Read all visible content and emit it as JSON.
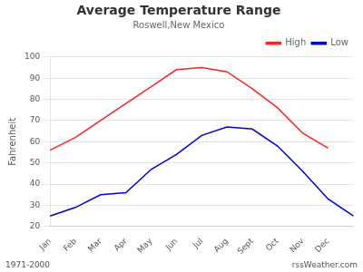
{
  "chart_data": {
    "type": "line",
    "title": "Average Temperature Range",
    "subtitle": "Roswell,New Mexico",
    "y_label": "Fahrenheit",
    "annotations": [
      "1971-2000",
      "rssWeather.com"
    ],
    "categories": [
      "Jan",
      "Feb",
      "Mar",
      "Apr",
      "May",
      "Jun",
      "Jul",
      "Aug",
      "Sept",
      "Oct",
      "Nov",
      "Dec",
      null
    ],
    "series": [
      {
        "name": "High",
        "color": "#ff2222",
        "values": [
          56,
          62,
          70,
          78,
          86,
          94,
          95,
          93,
          85,
          76,
          64,
          57,
          null
        ]
      },
      {
        "name": "Low",
        "color": "#0000cc",
        "values": [
          25,
          29,
          35,
          36,
          47,
          54,
          63,
          67,
          66,
          58,
          46,
          33,
          25
        ]
      }
    ],
    "ylim": [
      20,
      100
    ],
    "yticks": [
      20,
      30,
      40,
      50,
      60,
      70,
      80,
      90,
      100
    ],
    "grid": "y",
    "legend": "upper right"
  }
}
